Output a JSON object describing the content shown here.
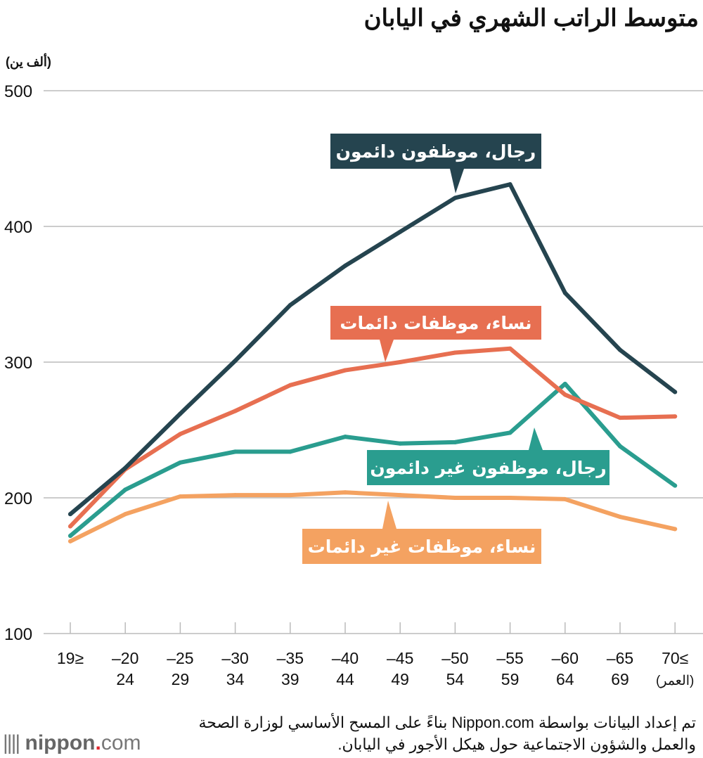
{
  "chart_data": {
    "type": "line",
    "title": "متوسط الراتب الشهري في اليابان",
    "ylabel": "(ألف ين)",
    "xlabel": "(العمر)",
    "ylim": [
      100,
      500
    ],
    "yticks": [
      100,
      200,
      300,
      400,
      500
    ],
    "grid": true,
    "categories": [
      [
        "19≥",
        ""
      ],
      [
        "–20",
        "24"
      ],
      [
        "–25",
        "29"
      ],
      [
        "–30",
        "34"
      ],
      [
        "–35",
        "39"
      ],
      [
        "–40",
        "44"
      ],
      [
        "–45",
        "49"
      ],
      [
        "–50",
        "54"
      ],
      [
        "–55",
        "59"
      ],
      [
        "–60",
        "64"
      ],
      [
        "–65",
        "69"
      ],
      [
        "70≤",
        "(العمر)"
      ]
    ],
    "series": [
      {
        "name": "رجال، موظفون دائمون",
        "color": "#25444f",
        "values": [
          188,
          222,
          262,
          301,
          342,
          371,
          396,
          421,
          431,
          351,
          309,
          278
        ]
      },
      {
        "name": "نساء، موظفات دائمات",
        "color": "#e76f51",
        "values": [
          179,
          221,
          247,
          264,
          283,
          294,
          300,
          307,
          310,
          276,
          259,
          260
        ]
      },
      {
        "name": "رجال، موظفون غير دائمون",
        "color": "#2a9d8f",
        "values": [
          172,
          206,
          226,
          234,
          234,
          245,
          240,
          241,
          248,
          284,
          238,
          209
        ]
      },
      {
        "name": "نساء، موظفات غير دائمات",
        "color": "#f4a261",
        "values": [
          168,
          188,
          201,
          202,
          202,
          204,
          202,
          200,
          200,
          199,
          186,
          177
        ]
      }
    ]
  },
  "source": "تم إعداد البيانات بواسطة Nippon.com بناءً على المسح الأساسي لوزارة الصحة والعمل والشؤون الاجتماعية حول هيكل الأجور في اليابان.",
  "logo": {
    "name": "nippon",
    "dot": ".",
    "suffix": "com"
  }
}
